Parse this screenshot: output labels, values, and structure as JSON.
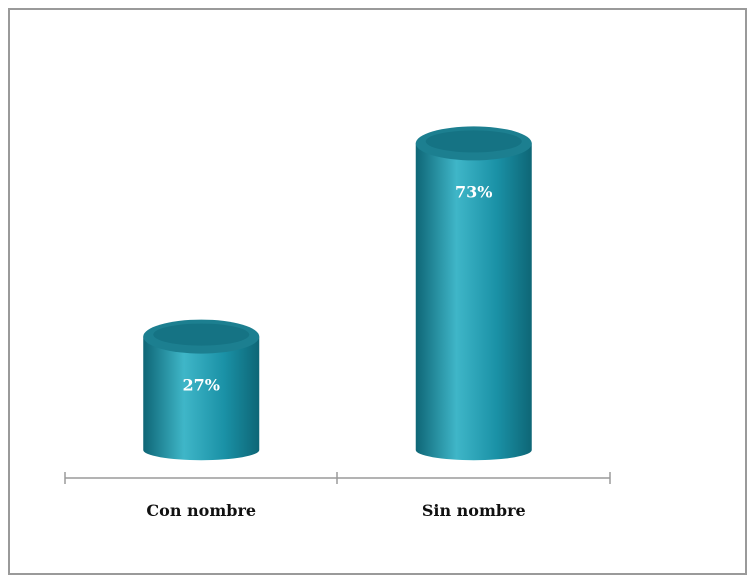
{
  "chart_data": {
    "type": "bar",
    "title": "",
    "xlabel": "",
    "ylabel": "",
    "categories": [
      "Con nombre",
      "Sin nombre"
    ],
    "values": [
      27,
      73
    ],
    "data_labels": [
      "27%",
      "73%"
    ],
    "ylim": [
      0,
      80
    ],
    "grid": false,
    "legend": "none",
    "bar_style": "3d-cylinder",
    "colors": {
      "bar_body": "#1a91a6",
      "bar_highlight": "#3fb6c8",
      "bar_shadow": "#0e6676",
      "bar_top": "#1c7f90",
      "axis": "#9a9a9a",
      "frame": "#9a9a9a"
    }
  }
}
